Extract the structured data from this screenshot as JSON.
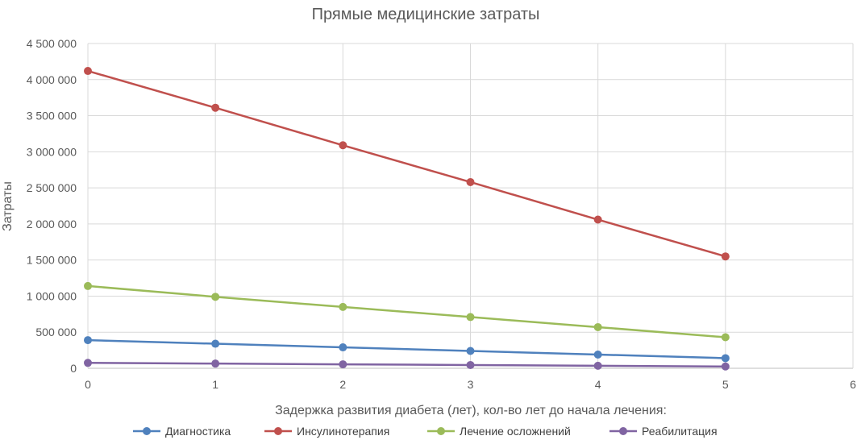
{
  "chart_data": {
    "type": "line",
    "title": "Прямые медицинские затраты",
    "xlabel": "Задержка развития диабета (лет), кол-во лет до начала лечения:",
    "ylabel": "Затраты",
    "xlim": [
      0,
      6
    ],
    "ylim": [
      0,
      4500000
    ],
    "x_ticks": [
      "0",
      "1",
      "2",
      "3",
      "4",
      "5",
      "6"
    ],
    "y_ticks": [
      "0",
      "500 000",
      "1 000 000",
      "1 500 000",
      "2 000 000",
      "2 500 000",
      "3 000 000",
      "3 500 000",
      "4 000 000",
      "4 500 000"
    ],
    "grid": true,
    "legend_position": "bottom",
    "x": [
      0,
      1,
      2,
      3,
      4,
      5
    ],
    "series": [
      {
        "name": "Диагностика",
        "color": "#4F81BD",
        "values": [
          390000,
          340000,
          290000,
          240000,
          190000,
          140000
        ]
      },
      {
        "name": "Инсулинотерапия",
        "color": "#C0504D",
        "values": [
          4120000,
          3610000,
          3090000,
          2580000,
          2060000,
          1550000
        ]
      },
      {
        "name": "Лечение осложнений",
        "color": "#9BBB59",
        "values": [
          1140000,
          990000,
          850000,
          710000,
          570000,
          430000
        ]
      },
      {
        "name": "Реабилитация",
        "color": "#8064A2",
        "values": [
          75000,
          65000,
          55000,
          45000,
          35000,
          25000
        ]
      }
    ]
  }
}
